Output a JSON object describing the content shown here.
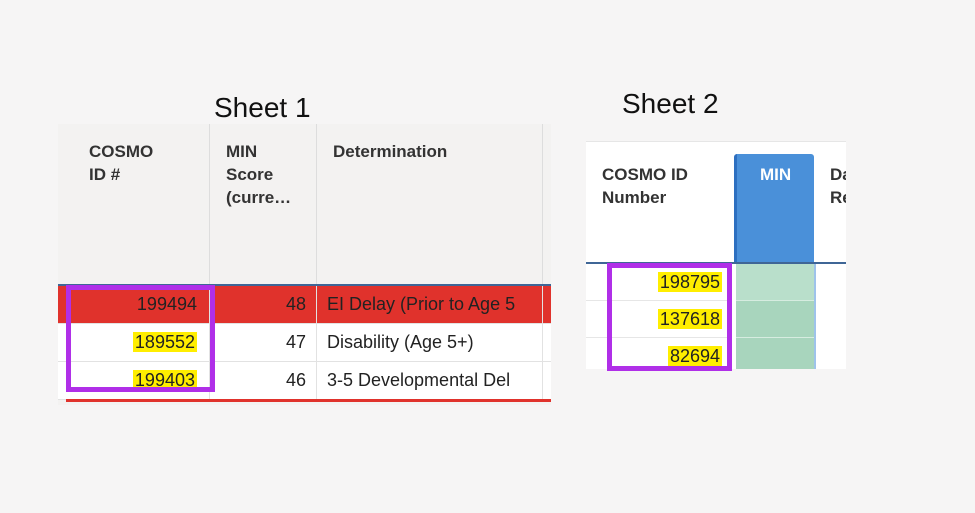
{
  "captions": {
    "sheet1": "Sheet 1",
    "sheet2": "Sheet 2"
  },
  "sheet1": {
    "headers": [
      "COSMO ID #",
      "MIN Score (curre…",
      "Determination"
    ],
    "rows": [
      {
        "id": "199494",
        "min": "48",
        "determination": "EI Delay (Prior to Age 5",
        "status": "red"
      },
      {
        "id": "189552",
        "min": "47",
        "determination": "Disability (Age 5+)",
        "status": "normal"
      },
      {
        "id": "199403",
        "min": "46",
        "determination": "3-5 Developmental Del",
        "status": "normal"
      }
    ]
  },
  "sheet2": {
    "headers": [
      "COSMO ID Number",
      "MIN",
      "Da Re"
    ],
    "rows": [
      {
        "id": "198795"
      },
      {
        "id": "137618"
      },
      {
        "id": "82694"
      }
    ]
  },
  "colors": {
    "highlight": "#ffee00",
    "selection_box": "#b02fe8",
    "red_row": "#e0322c",
    "min_header": "#4a90d9",
    "min_cells": "#b9dfcb"
  }
}
